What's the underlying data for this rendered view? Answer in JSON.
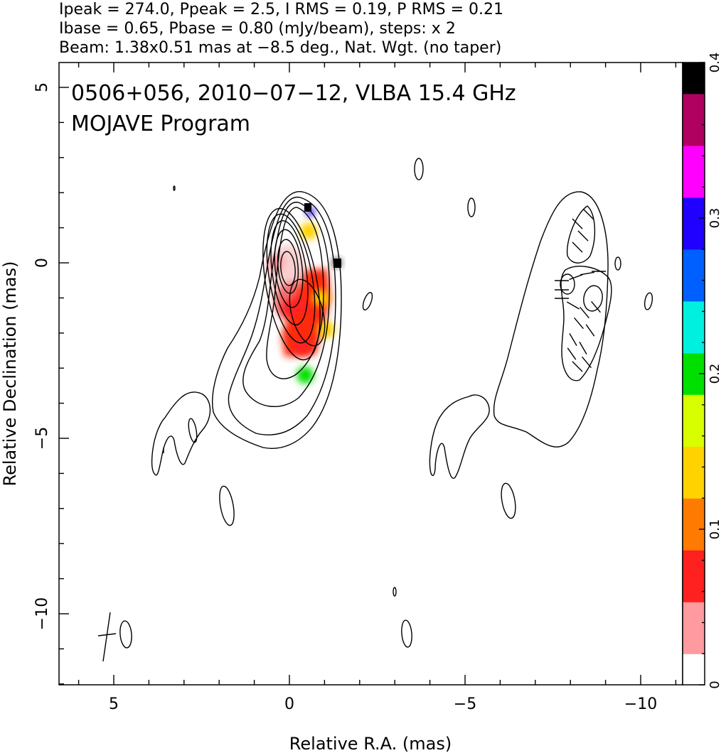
{
  "header": {
    "line1": "Ipeak = 274.0, Ppeak = 2.5, I RMS = 0.19, P RMS = 0.21",
    "line2": "Ibase = 0.65, Pbase = 0.80 (mJy/beam), steps: x 2",
    "line3": "Beam: 1.38x0.51 mas at −8.5 deg., Nat. Wgt. (no taper)"
  },
  "chart_data": {
    "type": "heatmap",
    "title": "0506+056, 2010−07−12, VLBA 15.4 GHz",
    "subtitle": "MOJAVE Program",
    "xlabel": "Relative R.A. (mas)",
    "ylabel": "Relative Declination (mas)",
    "xlim": [
      6.5,
      -11.3
    ],
    "ylim": [
      -12.0,
      5.8
    ],
    "x_ticks": [
      5,
      0,
      -5,
      -10
    ],
    "x_tick_labels": [
      "5",
      "0",
      "−5",
      "−10"
    ],
    "y_ticks": [
      5,
      0,
      -5,
      -10
    ],
    "y_tick_labels": [
      "5",
      "0",
      "−5",
      "−10"
    ],
    "colorbar": {
      "range": [
        0,
        0.4
      ],
      "ticks": [
        0,
        0.1,
        0.2,
        0.3,
        0.4
      ],
      "tick_labels": [
        "0",
        "0.1",
        "0.2",
        "0.3",
        "0.4"
      ],
      "colors": [
        "#ffffff",
        "#ff9aa0",
        "#ff2020",
        "#ff7a00",
        "#ffd200",
        "#d8ff00",
        "#00e000",
        "#00f0e0",
        "#0060ff",
        "#2000ff",
        "#ff00ff",
        "#b00060",
        "#000000"
      ]
    },
    "frac_pol_map": [
      {
        "x": 0.4,
        "y": 0.0,
        "value": 0.03
      },
      {
        "x": 0.0,
        "y": -1.3,
        "value": 0.06
      },
      {
        "x": -0.3,
        "y": -1.2,
        "value": 0.08
      },
      {
        "x": -0.9,
        "y": -1.0,
        "value": 0.12
      },
      {
        "x": -1.05,
        "y": -1.9,
        "value": 0.15
      },
      {
        "x": -0.35,
        "y": -2.4,
        "value": 0.08
      },
      {
        "x": -0.45,
        "y": -3.2,
        "value": 0.2
      },
      {
        "x": -0.55,
        "y": 0.9,
        "value": 0.12
      },
      {
        "x": -0.6,
        "y": 1.45,
        "value": 0.3
      },
      {
        "x": -1.35,
        "y": 0.0,
        "value": 0.4
      }
    ],
    "grid": false,
    "legend": "colorbar-right"
  }
}
